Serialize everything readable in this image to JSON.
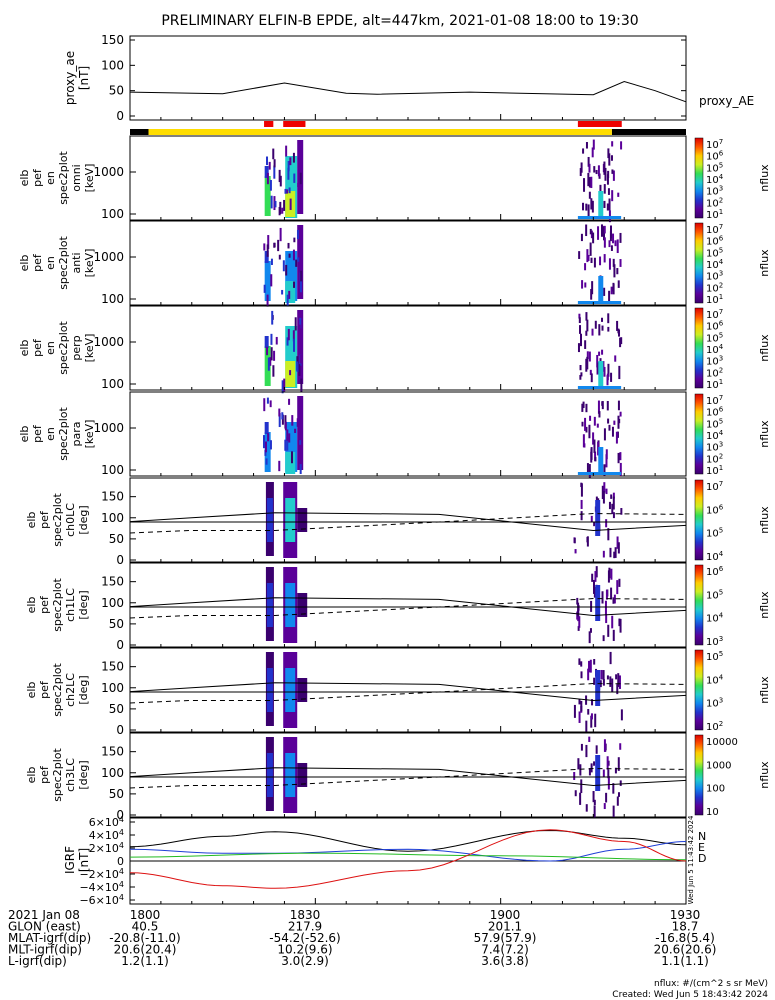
{
  "title": "PRELIMINARY ELFIN-B EPDE, alt=447km, 2021-01-08 18:00 to 19:30",
  "colors": {
    "bar_black": "#000000",
    "bar_yellow": "#ffdd00",
    "bar_red": "#ee0000",
    "trace_black": "#000000",
    "trace_blue": "#1f3fd6",
    "trace_green": "#22bb22",
    "trace_red": "#dd1111",
    "colormap": [
      "#3a006e",
      "#5a0099",
      "#2233cc",
      "#1188ee",
      "#22cccc",
      "#33dd55",
      "#ccee22",
      "#ffcc00",
      "#ff5500",
      "#dd0000"
    ]
  },
  "proxy_ae": {
    "ylabel_lines": [
      "proxy_ae",
      "[nT]"
    ],
    "ticks": [
      "150",
      "100",
      "50",
      "0"
    ],
    "label": "proxy_AE"
  },
  "spec_panels": [
    {
      "ylabel_lines": [
        "elb",
        "pef",
        "en",
        "spec2plot",
        "omni",
        "[keV]"
      ],
      "ticks": [
        "1000",
        "100"
      ],
      "cbar_ticks": [
        "10^7",
        "10^6",
        "10^5",
        "10^4",
        "10^3",
        "10^2",
        "10^1"
      ],
      "cbar_title": "nflux"
    },
    {
      "ylabel_lines": [
        "elb",
        "pef",
        "en",
        "spec2plot",
        "anti",
        "[keV]"
      ],
      "ticks": [
        "1000",
        "100"
      ],
      "cbar_ticks": [
        "10^7",
        "10^6",
        "10^5",
        "10^4",
        "10^3",
        "10^2",
        "10^1"
      ],
      "cbar_title": "nflux"
    },
    {
      "ylabel_lines": [
        "elb",
        "pef",
        "en",
        "spec2plot",
        "perp",
        "[keV]"
      ],
      "ticks": [
        "1000",
        "100"
      ],
      "cbar_ticks": [
        "10^7",
        "10^6",
        "10^5",
        "10^4",
        "10^3",
        "10^2",
        "10^1"
      ],
      "cbar_title": "nflux"
    },
    {
      "ylabel_lines": [
        "elb",
        "pef",
        "en",
        "spec2plot",
        "para",
        "[keV]"
      ],
      "ticks": [
        "1000",
        "100"
      ],
      "cbar_ticks": [
        "10^7",
        "10^6",
        "10^5",
        "10^4",
        "10^3",
        "10^2",
        "10^1"
      ],
      "cbar_title": "nflux"
    },
    {
      "ylabel_lines": [
        "elb",
        "pef",
        "spec2plot",
        "ch0LC",
        "[deg]"
      ],
      "ticks": [
        "150",
        "100",
        "50",
        "0"
      ],
      "cbar_ticks": [
        "10^7",
        "10^6",
        "10^5",
        "10^4"
      ],
      "cbar_title": "nflux"
    },
    {
      "ylabel_lines": [
        "elb",
        "pef",
        "spec2plot",
        "ch1LC",
        "[deg]"
      ],
      "ticks": [
        "150",
        "100",
        "50",
        "0"
      ],
      "cbar_ticks": [
        "10^6",
        "10^5",
        "10^4",
        "10^3"
      ],
      "cbar_title": "nflux"
    },
    {
      "ylabel_lines": [
        "elb",
        "pef",
        "spec2plot",
        "ch2LC",
        "[deg]"
      ],
      "ticks": [
        "150",
        "100",
        "50",
        "0"
      ],
      "cbar_ticks": [
        "10^5",
        "10^4",
        "10^3",
        "10^2"
      ],
      "cbar_title": "nflux"
    },
    {
      "ylabel_lines": [
        "elb",
        "pef",
        "spec2plot",
        "ch3LC",
        "[deg]"
      ],
      "ticks": [
        "150",
        "100",
        "50",
        "0"
      ],
      "cbar_ticks": [
        "10000",
        "1000",
        "100",
        "10"
      ],
      "cbar_title": "nflux"
    }
  ],
  "igrf": {
    "ylabel_lines": [
      "IGRF",
      "[nT]"
    ],
    "ticks": [
      "6×10^4",
      "4×10^4",
      "2×10^4",
      "0",
      "−2×10^4",
      "−4×10^4",
      "−6×10^4"
    ],
    "legend": [
      "N",
      "E",
      "D"
    ],
    "side_text": "Wed Jun  5 11:43:42 2024"
  },
  "footer": {
    "rows": [
      [
        "2021 Jan 08",
        "1800",
        "1830",
        "1900",
        "1930"
      ],
      [
        "GLON (east)",
        "40.5",
        "217.9",
        "201.1",
        "18.7"
      ],
      [
        "MLAT-igrf(dip)",
        "-20.8(-11.0)",
        "-54.2(-52.6)",
        "57.9(57.9)",
        "-16.8(5.4)"
      ],
      [
        "MLT-igrf(dip)",
        "20.6(20.4)",
        "10.2(9.6)",
        "7.4(7.2)",
        "20.6(20.6)"
      ],
      [
        "L-igrf(dip)",
        "1.2(1.1)",
        "3.0(2.9)",
        "3.6(3.8)",
        "1.1(1.1)"
      ]
    ],
    "units_note": "nflux: #/(cm^2 s sr MeV)",
    "created": "Created: Wed Jun  5 18:43:42 2024"
  },
  "chart_data": {
    "type": "heatmap",
    "x_range": [
      "18:00",
      "19:30"
    ],
    "x_ticks": [
      "1800",
      "1830",
      "1900",
      "1930"
    ],
    "proxy_ae": {
      "x_minutes": [
        0,
        15,
        25,
        35,
        40,
        55,
        75,
        80,
        85,
        90
      ],
      "values": [
        47,
        44,
        65,
        45,
        43,
        47,
        42,
        68,
        50,
        28
      ],
      "ylim": [
        0,
        150
      ]
    },
    "flag_bar": {
      "black": [
        [
          0,
          3
        ],
        [
          78,
          90
        ]
      ],
      "yellow": [
        [
          3,
          78
        ]
      ],
      "red": [
        [
          21.7,
          23.2
        ],
        [
          24.8,
          28.4
        ],
        [
          72.5,
          79.6
        ]
      ]
    },
    "lc_lines": {
      "x_minutes": [
        0,
        10,
        23.5,
        50,
        75,
        90
      ],
      "solid": [
        91,
        100,
        112,
        108,
        70,
        82
      ],
      "dashed": [
        64,
        70,
        70,
        90,
        110,
        108
      ],
      "horizontal": 90,
      "ylim": [
        0,
        180
      ]
    },
    "igrf": {
      "x_minutes": [
        0,
        15,
        23.5,
        45,
        68,
        80,
        90
      ],
      "N": [
        22000,
        38000,
        45000,
        15000,
        47000,
        35000,
        25000
      ],
      "E": [
        18000,
        12000,
        12000,
        18000,
        0,
        18000,
        30000
      ],
      "D": [
        -18000,
        -38000,
        -42000,
        -15000,
        48000,
        30000,
        0
      ],
      "ylim": [
        -60000,
        60000
      ]
    }
  }
}
